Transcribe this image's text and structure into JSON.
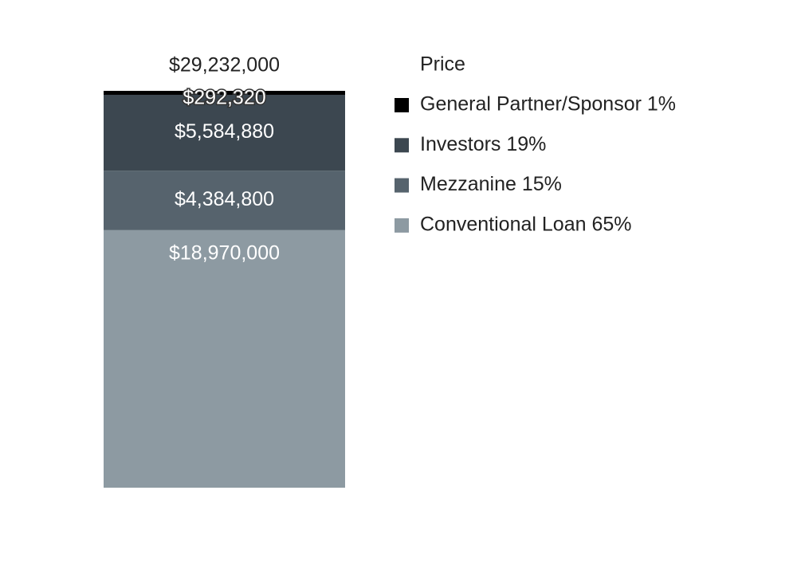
{
  "chart_data": {
    "type": "stacked_bar",
    "legend_title": "Price",
    "categories": [
      null
    ],
    "total": {
      "value": 29232000,
      "label": "$29,232,000"
    },
    "series": [
      {
        "name": "Conventional Loan 65%",
        "color": "#8d9aa2",
        "values": [
          18970000
        ],
        "value_labels": [
          "$18,970,000"
        ]
      },
      {
        "name": "Mezzanine 15%",
        "color": "#56636d",
        "values": [
          4384800
        ],
        "value_labels": [
          "$4,384,800"
        ]
      },
      {
        "name": "Investors 19%",
        "color": "#3c4750",
        "values": [
          5584880
        ],
        "value_labels": [
          "$5,584,880"
        ]
      },
      {
        "name": "General Partner/Sponsor 1%",
        "color": "#000000",
        "values": [
          292320
        ],
        "value_labels": [
          "$292,320"
        ]
      }
    ],
    "legend": "right"
  }
}
